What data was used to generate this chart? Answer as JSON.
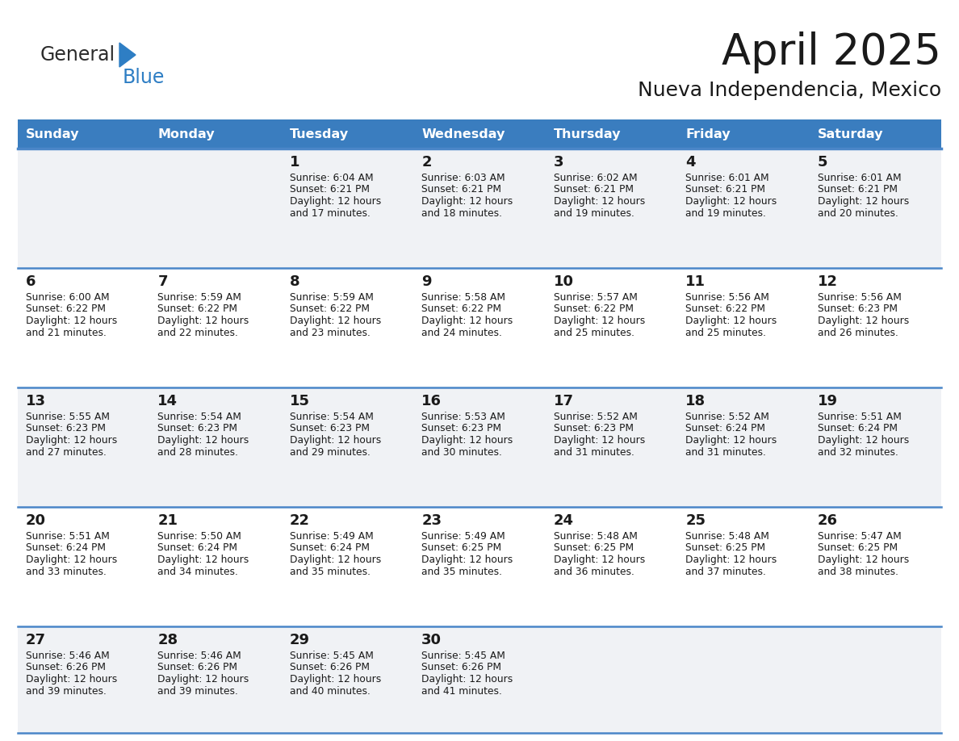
{
  "title": "April 2025",
  "subtitle": "Nueva Independencia, Mexico",
  "header_bg": "#3a7dbf",
  "header_text_color": "#ffffff",
  "row_bg_light": "#f0f2f5",
  "row_bg_white": "#ffffff",
  "divider_color": "#4a86c8",
  "text_color": "#1a1a1a",
  "days_of_week": [
    "Sunday",
    "Monday",
    "Tuesday",
    "Wednesday",
    "Thursday",
    "Friday",
    "Saturday"
  ],
  "logo_dark": "#2b2b2b",
  "logo_blue": "#2e7ec4",
  "calendar_data": [
    [
      "",
      "",
      "1",
      "2",
      "3",
      "4",
      "5"
    ],
    [
      "6",
      "7",
      "8",
      "9",
      "10",
      "11",
      "12"
    ],
    [
      "13",
      "14",
      "15",
      "16",
      "17",
      "18",
      "19"
    ],
    [
      "20",
      "21",
      "22",
      "23",
      "24",
      "25",
      "26"
    ],
    [
      "27",
      "28",
      "29",
      "30",
      "",
      "",
      ""
    ]
  ],
  "cell_info": [
    [
      "",
      "",
      "Sunrise: 6:04 AM\nSunset: 6:21 PM\nDaylight: 12 hours\nand 17 minutes.",
      "Sunrise: 6:03 AM\nSunset: 6:21 PM\nDaylight: 12 hours\nand 18 minutes.",
      "Sunrise: 6:02 AM\nSunset: 6:21 PM\nDaylight: 12 hours\nand 19 minutes.",
      "Sunrise: 6:01 AM\nSunset: 6:21 PM\nDaylight: 12 hours\nand 19 minutes.",
      "Sunrise: 6:01 AM\nSunset: 6:21 PM\nDaylight: 12 hours\nand 20 minutes."
    ],
    [
      "Sunrise: 6:00 AM\nSunset: 6:22 PM\nDaylight: 12 hours\nand 21 minutes.",
      "Sunrise: 5:59 AM\nSunset: 6:22 PM\nDaylight: 12 hours\nand 22 minutes.",
      "Sunrise: 5:59 AM\nSunset: 6:22 PM\nDaylight: 12 hours\nand 23 minutes.",
      "Sunrise: 5:58 AM\nSunset: 6:22 PM\nDaylight: 12 hours\nand 24 minutes.",
      "Sunrise: 5:57 AM\nSunset: 6:22 PM\nDaylight: 12 hours\nand 25 minutes.",
      "Sunrise: 5:56 AM\nSunset: 6:22 PM\nDaylight: 12 hours\nand 25 minutes.",
      "Sunrise: 5:56 AM\nSunset: 6:23 PM\nDaylight: 12 hours\nand 26 minutes."
    ],
    [
      "Sunrise: 5:55 AM\nSunset: 6:23 PM\nDaylight: 12 hours\nand 27 minutes.",
      "Sunrise: 5:54 AM\nSunset: 6:23 PM\nDaylight: 12 hours\nand 28 minutes.",
      "Sunrise: 5:54 AM\nSunset: 6:23 PM\nDaylight: 12 hours\nand 29 minutes.",
      "Sunrise: 5:53 AM\nSunset: 6:23 PM\nDaylight: 12 hours\nand 30 minutes.",
      "Sunrise: 5:52 AM\nSunset: 6:23 PM\nDaylight: 12 hours\nand 31 minutes.",
      "Sunrise: 5:52 AM\nSunset: 6:24 PM\nDaylight: 12 hours\nand 31 minutes.",
      "Sunrise: 5:51 AM\nSunset: 6:24 PM\nDaylight: 12 hours\nand 32 minutes."
    ],
    [
      "Sunrise: 5:51 AM\nSunset: 6:24 PM\nDaylight: 12 hours\nand 33 minutes.",
      "Sunrise: 5:50 AM\nSunset: 6:24 PM\nDaylight: 12 hours\nand 34 minutes.",
      "Sunrise: 5:49 AM\nSunset: 6:24 PM\nDaylight: 12 hours\nand 35 minutes.",
      "Sunrise: 5:49 AM\nSunset: 6:25 PM\nDaylight: 12 hours\nand 35 minutes.",
      "Sunrise: 5:48 AM\nSunset: 6:25 PM\nDaylight: 12 hours\nand 36 minutes.",
      "Sunrise: 5:48 AM\nSunset: 6:25 PM\nDaylight: 12 hours\nand 37 minutes.",
      "Sunrise: 5:47 AM\nSunset: 6:25 PM\nDaylight: 12 hours\nand 38 minutes."
    ],
    [
      "Sunrise: 5:46 AM\nSunset: 6:26 PM\nDaylight: 12 hours\nand 39 minutes.",
      "Sunrise: 5:46 AM\nSunset: 6:26 PM\nDaylight: 12 hours\nand 39 minutes.",
      "Sunrise: 5:45 AM\nSunset: 6:26 PM\nDaylight: 12 hours\nand 40 minutes.",
      "Sunrise: 5:45 AM\nSunset: 6:26 PM\nDaylight: 12 hours\nand 41 minutes.",
      "",
      "",
      ""
    ]
  ]
}
